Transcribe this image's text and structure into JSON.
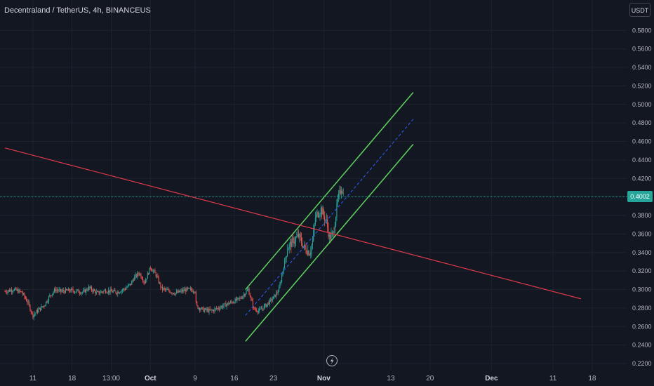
{
  "header": {
    "title": "Decentraland / TetherUS, 4h, BINANCEUS",
    "currency_label": "USDT"
  },
  "colors": {
    "background": "#131722",
    "grid": "#1e222d",
    "up_candle": "#26a69a",
    "down_candle": "#ef5350",
    "channel": "#5fd35f",
    "channel_mid": "#2962ff",
    "trendline": "#e0394a",
    "price_line": "#26a69a"
  },
  "chart_data": {
    "type": "candlestick",
    "symbol": "Decentraland / TetherUS",
    "interval": "4h",
    "exchange": "BINANCEUS",
    "current_price": 0.4002,
    "current_price_label": "0.4002",
    "y_axis": {
      "range": [
        0.21,
        0.59
      ],
      "ticks": [
        "0.5800",
        "0.5600",
        "0.5400",
        "0.5200",
        "0.5000",
        "0.4800",
        "0.4600",
        "0.4400",
        "0.4200",
        "0.3800",
        "0.3600",
        "0.3400",
        "0.3200",
        "0.3000",
        "0.2800",
        "0.2600",
        "0.2400",
        "0.2200"
      ]
    },
    "x_axis": {
      "range_days": [
        0,
        142
      ],
      "ticks": [
        {
          "label": "11",
          "day": 11,
          "major": false
        },
        {
          "label": "18",
          "day": 18,
          "major": false
        },
        {
          "label": "13:00",
          "day": 25,
          "major": false
        },
        {
          "label": "Oct",
          "day": 32,
          "major": true
        },
        {
          "label": "9",
          "day": 40,
          "major": false
        },
        {
          "label": "16",
          "day": 47,
          "major": false
        },
        {
          "label": "23",
          "day": 54,
          "major": false
        },
        {
          "label": "Nov",
          "day": 63,
          "major": true
        },
        {
          "label": "13",
          "day": 75,
          "major": false
        },
        {
          "label": "20",
          "day": 82,
          "major": false
        },
        {
          "label": "Dec",
          "day": 93,
          "major": true
        },
        {
          "label": "11",
          "day": 104,
          "major": false
        },
        {
          "label": "18",
          "day": 111,
          "major": false
        }
      ]
    },
    "price_path": [
      [
        6.0,
        0.298
      ],
      [
        7.5,
        0.3
      ],
      [
        9.0,
        0.297
      ],
      [
        10.0,
        0.287
      ],
      [
        11.0,
        0.272
      ],
      [
        12.0,
        0.278
      ],
      [
        13.0,
        0.283
      ],
      [
        14.0,
        0.293
      ],
      [
        15.0,
        0.3
      ],
      [
        16.0,
        0.298
      ],
      [
        18.0,
        0.299
      ],
      [
        20.0,
        0.297
      ],
      [
        21.0,
        0.302
      ],
      [
        22.5,
        0.296
      ],
      [
        24.0,
        0.299
      ],
      [
        26.0,
        0.297
      ],
      [
        27.5,
        0.301
      ],
      [
        28.5,
        0.306
      ],
      [
        29.0,
        0.312
      ],
      [
        30.0,
        0.318
      ],
      [
        31.0,
        0.308
      ],
      [
        32.0,
        0.324
      ],
      [
        33.0,
        0.316
      ],
      [
        34.0,
        0.301
      ],
      [
        35.0,
        0.299
      ],
      [
        36.5,
        0.296
      ],
      [
        38.5,
        0.3
      ],
      [
        40.0,
        0.299
      ],
      [
        40.2,
        0.282
      ],
      [
        41.5,
        0.278
      ],
      [
        43.0,
        0.277
      ],
      [
        44.5,
        0.281
      ],
      [
        46.0,
        0.285
      ],
      [
        47.2,
        0.288
      ],
      [
        48.0,
        0.29
      ],
      [
        49.5,
        0.3
      ],
      [
        50.5,
        0.279
      ],
      [
        51.5,
        0.277
      ],
      [
        53.0,
        0.285
      ],
      [
        54.0,
        0.291
      ],
      [
        55.0,
        0.3
      ],
      [
        56.0,
        0.33
      ],
      [
        56.5,
        0.345
      ],
      [
        57.5,
        0.352
      ],
      [
        58.5,
        0.358
      ],
      [
        59.5,
        0.345
      ],
      [
        60.5,
        0.34
      ],
      [
        61.0,
        0.352
      ],
      [
        61.5,
        0.378
      ],
      [
        62.5,
        0.387
      ],
      [
        63.5,
        0.373
      ],
      [
        64.0,
        0.356
      ],
      [
        64.7,
        0.36
      ],
      [
        65.5,
        0.396
      ],
      [
        66.2,
        0.411
      ],
      [
        66.6,
        0.4
      ]
    ],
    "annotations": [
      {
        "type": "channel_upper",
        "points": [
          [
            49.0,
            0.3
          ],
          [
            79.0,
            0.513
          ]
        ]
      },
      {
        "type": "channel_mid",
        "points": [
          [
            49.0,
            0.272
          ],
          [
            79.0,
            0.484
          ]
        ]
      },
      {
        "type": "channel_lower",
        "points": [
          [
            49.0,
            0.244
          ],
          [
            79.0,
            0.457
          ]
        ]
      },
      {
        "type": "trendline",
        "points": [
          [
            6.0,
            0.453
          ],
          [
            109.0,
            0.29
          ]
        ]
      },
      {
        "type": "horizontal_price_line",
        "price": 0.4002
      }
    ]
  }
}
